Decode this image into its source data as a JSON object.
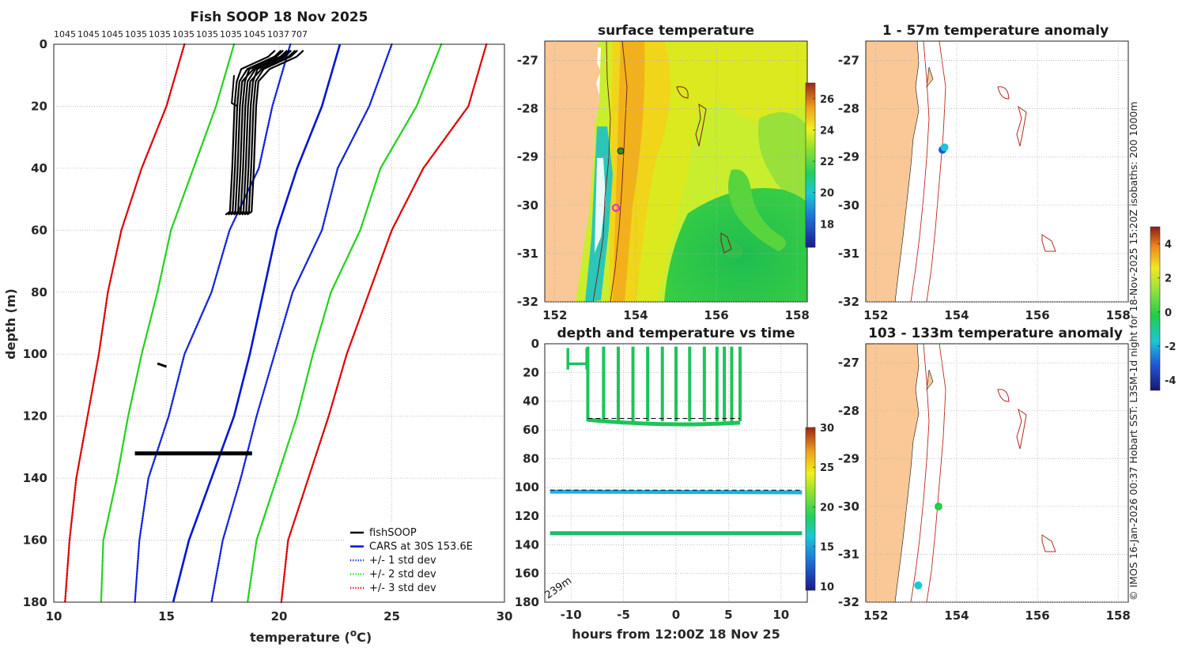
{
  "credit": "© IMOS 16-Jan-2026 00:37 Hobart SST: L3SM-1d night for 18-Nov-2025 15:20Z isobaths: 200  1000m",
  "colors": {
    "fishsoop": "#000000",
    "cars": "#0015d4",
    "std1": "#1020e0",
    "std2": "#21d21a",
    "std3": "#e00000",
    "land": "#f9c896",
    "isobath": "#b8281e"
  },
  "chart_data": [
    {
      "id": "profile",
      "type": "line",
      "title": "Fish SOOP 18 Nov 2025",
      "top_labels": [
        "1045",
        "1045",
        "1045",
        "1035",
        "1035",
        "1035",
        "1035",
        "1035",
        "1045",
        "1037",
        "707"
      ],
      "xlabel": "temperature (°C)",
      "ylabel": "depth (m)",
      "xlim": [
        10,
        30
      ],
      "ylim": [
        180,
        0
      ],
      "xticks": [
        "10",
        "15",
        "20",
        "25",
        "30"
      ],
      "yticks": [
        "0",
        "20",
        "40",
        "60",
        "80",
        "100",
        "120",
        "140",
        "160",
        "180"
      ],
      "depth": [
        0,
        20,
        40,
        60,
        80,
        100,
        120,
        140,
        160,
        180
      ],
      "series": [
        {
          "name": "CARS at 30S 153.6E",
          "style": "solid",
          "color": "#0015d4",
          "values": [
            22.7,
            21.9,
            20.8,
            19.9,
            19.3,
            18.7,
            18.0,
            17.0,
            16.0,
            15.3
          ]
        },
        {
          "name": "+/- 1 std dev",
          "style": "dotted",
          "color": "#1020e0",
          "values": [
            25.0,
            24.0,
            22.6,
            21.9,
            20.6,
            19.8,
            19.0,
            18.3,
            17.5,
            17.0
          ]
        },
        {
          "name": "",
          "style": "dotted",
          "color": "#1020e0",
          "values": [
            20.5,
            19.7,
            19.1,
            17.8,
            17.0,
            15.8,
            15.1,
            14.2,
            13.8,
            13.6
          ]
        },
        {
          "name": "+/- 2 std dev",
          "style": "dotted",
          "color": "#21d21a",
          "values": [
            27.2,
            26.1,
            24.5,
            23.6,
            22.3,
            21.5,
            20.8,
            19.9,
            19.0,
            18.6
          ]
        },
        {
          "name": "",
          "style": "dotted",
          "color": "#21d21a",
          "values": [
            18.0,
            17.2,
            16.2,
            15.2,
            14.6,
            13.9,
            13.3,
            12.8,
            12.2,
            12.1
          ]
        },
        {
          "name": "+/- 3 std dev",
          "style": "dotted",
          "color": "#e00000",
          "values": [
            29.2,
            28.4,
            26.4,
            25.0,
            24.0,
            23.0,
            22.2,
            21.3,
            20.4,
            20.1
          ]
        },
        {
          "name": "",
          "style": "dotted",
          "color": "#e00000",
          "values": [
            15.8,
            15.0,
            13.9,
            13.0,
            12.4,
            12.0,
            11.5,
            11.0,
            10.7,
            10.5
          ]
        }
      ],
      "fishsoop": {
        "name": "fishSOOP",
        "shallow_temp": [
          20.3,
          20.0,
          18.8,
          18.6,
          18.5,
          18.4,
          18.3,
          18.1
        ],
        "shallow_depth": [
          2,
          4,
          8,
          12,
          20,
          40,
          54,
          55
        ],
        "mid": {
          "depth": 103,
          "temp": [
            14.6,
            15.0
          ]
        },
        "deep": {
          "depth": 132,
          "temp": [
            13.6,
            18.8
          ]
        }
      }
    },
    {
      "id": "sst",
      "type": "heatmap",
      "title": "surface temperature",
      "xticks": [
        "152",
        "154",
        "156",
        "158"
      ],
      "yticks": [
        "-27",
        "-28",
        "-29",
        "-30",
        "-31",
        "-32"
      ],
      "cbar_ticks": [
        "26",
        "24",
        "22",
        "20",
        "18"
      ],
      "cbar_range": [
        16.5,
        27
      ]
    },
    {
      "id": "anom_top",
      "type": "scatter",
      "title": "1 - 57m temperature anomaly",
      "xticks": [
        "152",
        "154",
        "156",
        "158"
      ],
      "yticks": [
        "-27",
        "-28",
        "-29",
        "-30",
        "-31",
        "-32"
      ],
      "points": [
        {
          "lon": 153.65,
          "lat": -28.85,
          "anomaly": -3.0
        },
        {
          "lon": 153.7,
          "lat": -28.8,
          "anomaly": -1.0
        }
      ]
    },
    {
      "id": "anom_bottom",
      "type": "scatter",
      "title": "103 - 133m temperature anomaly",
      "xticks": [
        "152",
        "154",
        "156",
        "158"
      ],
      "yticks": [
        "-27",
        "-28",
        "-29",
        "-30",
        "-31",
        "-32"
      ],
      "points": [
        {
          "lon": 153.55,
          "lat": -30.0,
          "anomaly": 0.0
        },
        {
          "lon": 153.05,
          "lat": -31.65,
          "anomaly": -1.5
        }
      ],
      "cbar_ticks": [
        "4",
        "2",
        "0",
        "-2",
        "-4"
      ],
      "cbar_range": [
        -4.6,
        5
      ]
    },
    {
      "id": "time",
      "type": "scatter",
      "title": "depth and temperature vs time",
      "xlabel": "hours from 12:00Z 18 Nov 25",
      "xlim": [
        -12.5,
        12.5
      ],
      "ylim": [
        180,
        0
      ],
      "xticks": [
        "-10",
        "-5",
        "0",
        "5",
        "10"
      ],
      "yticks": [
        "0",
        "20",
        "40",
        "60",
        "80",
        "100",
        "120",
        "140",
        "160",
        "180"
      ],
      "bottom_label": "239m",
      "cbar_ticks": [
        "30",
        "25",
        "20",
        "15",
        "10"
      ],
      "cbar_range": [
        9.5,
        30
      ],
      "bottom_depth": 239,
      "shallow_dive_hours": [
        -8.4,
        -6.9,
        -5.5,
        -4.1,
        -2.7,
        -1.3,
        0.0,
        1.3,
        2.7,
        3.9,
        4.6,
        5.3,
        6.1
      ],
      "shallow_initial": [
        -10.3,
        -8.5
      ],
      "mid_series": {
        "depth": 103,
        "temp": 17
      },
      "deep_series": {
        "depth": 132,
        "temp": 20
      }
    }
  ]
}
